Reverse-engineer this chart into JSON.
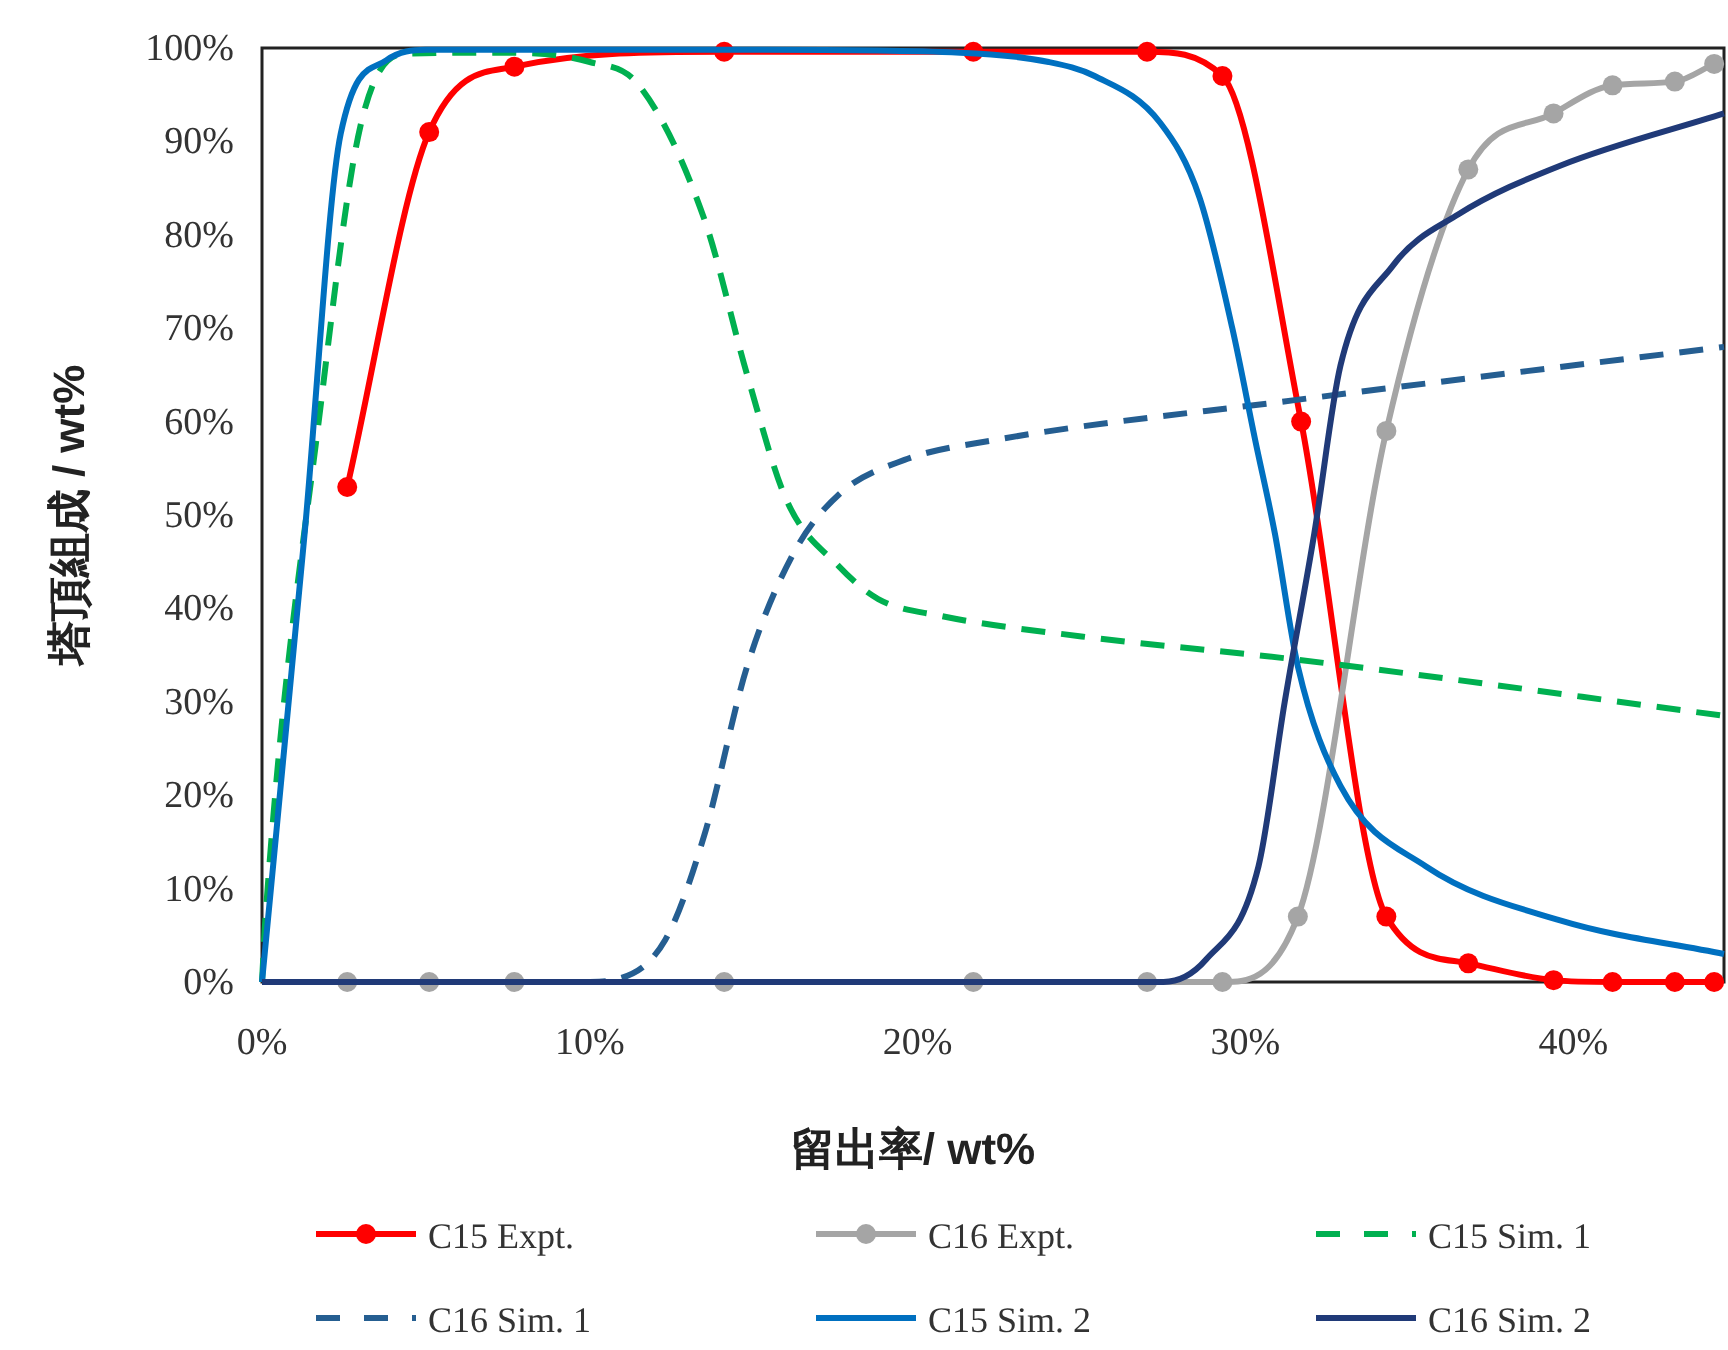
{
  "chart_data": {
    "type": "line",
    "xlabel": "留出率/ wt%",
    "ylabel": "塔頂組成 / wt%",
    "legend": "bottom",
    "xlim": [
      0,
      44.6
    ],
    "ylim": [
      0,
      100
    ],
    "xticks": [
      {
        "value": 0,
        "label": "0%"
      },
      {
        "value": 10,
        "label": "10%"
      },
      {
        "value": 20,
        "label": "20%"
      },
      {
        "value": 30,
        "label": "30%"
      },
      {
        "value": 40,
        "label": "40%"
      }
    ],
    "yticks": [
      {
        "value": 0,
        "label": "0%"
      },
      {
        "value": 10,
        "label": "10%"
      },
      {
        "value": 20,
        "label": "20%"
      },
      {
        "value": 30,
        "label": "30%"
      },
      {
        "value": 40,
        "label": "40%"
      },
      {
        "value": 50,
        "label": "50%"
      },
      {
        "value": 60,
        "label": "60%"
      },
      {
        "value": 70,
        "label": "70%"
      },
      {
        "value": 80,
        "label": "80%"
      },
      {
        "value": 90,
        "label": "90%"
      },
      {
        "value": 100,
        "label": "100%"
      }
    ],
    "series": [
      {
        "name": "C15 Expt.",
        "color": "#ff0000",
        "marker": "circle",
        "line_style": "solid",
        "x": [
          2.6,
          5.1,
          7.7,
          14.1,
          21.7,
          27.0,
          29.3,
          31.7,
          34.3,
          36.8,
          39.4,
          41.2,
          43.1,
          44.3
        ],
        "values": [
          53,
          91,
          98,
          99.6,
          99.6,
          99.6,
          97,
          60,
          7,
          2,
          0.2,
          0,
          0,
          0
        ]
      },
      {
        "name": "C16 Expt.",
        "color": "#a5a5a5",
        "marker": "circle",
        "line_style": "solid",
        "x": [
          2.6,
          5.1,
          7.7,
          14.1,
          21.7,
          27.0,
          29.3,
          31.6,
          34.3,
          36.8,
          39.4,
          41.2,
          43.1,
          44.3
        ],
        "values": [
          0,
          0,
          0,
          0,
          0,
          0,
          0,
          7,
          59,
          87,
          93,
          96,
          96.4,
          98.3
        ]
      },
      {
        "name": "C15 Sim. 1",
        "color": "#00b050",
        "marker": "none",
        "line_style": "dashed",
        "x": [
          0,
          0.1,
          1.8,
          3.0,
          4.4,
          7,
          10,
          11.5,
          13.5,
          14.8,
          16.0,
          17.6,
          18.8,
          20.7,
          25,
          31.6,
          44.6
        ],
        "values": [
          0,
          6.6,
          62,
          91.6,
          99.4,
          99.5,
          98.5,
          96,
          81.6,
          65,
          51.6,
          44.5,
          41,
          39.2,
          37,
          34.5,
          28.5
        ]
      },
      {
        "name": "C16 Sim. 1",
        "color": "#255e91",
        "marker": "none",
        "line_style": "dashed",
        "x": [
          0,
          10,
          10.7,
          12.3,
          13.5,
          14.8,
          16.2,
          17.6,
          19.6,
          22.3,
          31.5,
          44.6
        ],
        "values": [
          0,
          0,
          0.2,
          4.5,
          15.8,
          33.8,
          45.8,
          52.2,
          55.9,
          58,
          62.3,
          68
        ]
      },
      {
        "name": "C15 Sim. 2",
        "color": "#0070c0",
        "marker": "none",
        "line_style": "solid",
        "x": [
          0,
          1.3,
          2.4,
          3.8,
          5,
          15,
          21.3,
          24,
          25.4,
          27.4,
          28.6,
          29.6,
          30.3,
          30.9,
          31.6,
          32.9,
          35.5,
          39.6,
          44.6
        ],
        "values": [
          0,
          48,
          90.8,
          98.7,
          99.8,
          99.8,
          99.5,
          98.5,
          97,
          92,
          84,
          70,
          58,
          48,
          33.8,
          21,
          12.4,
          6.6,
          3
        ]
      },
      {
        "name": "C16 Sim. 2",
        "color": "#203a78",
        "marker": "none",
        "line_style": "solid",
        "x": [
          0,
          27.5,
          28.8,
          30.4,
          31.2,
          32.1,
          32.9,
          34.5,
          36.5,
          39.6,
          44.6
        ],
        "values": [
          0,
          0,
          2.4,
          12.4,
          30,
          48,
          66,
          76.7,
          82.2,
          87.4,
          93
        ]
      }
    ]
  }
}
